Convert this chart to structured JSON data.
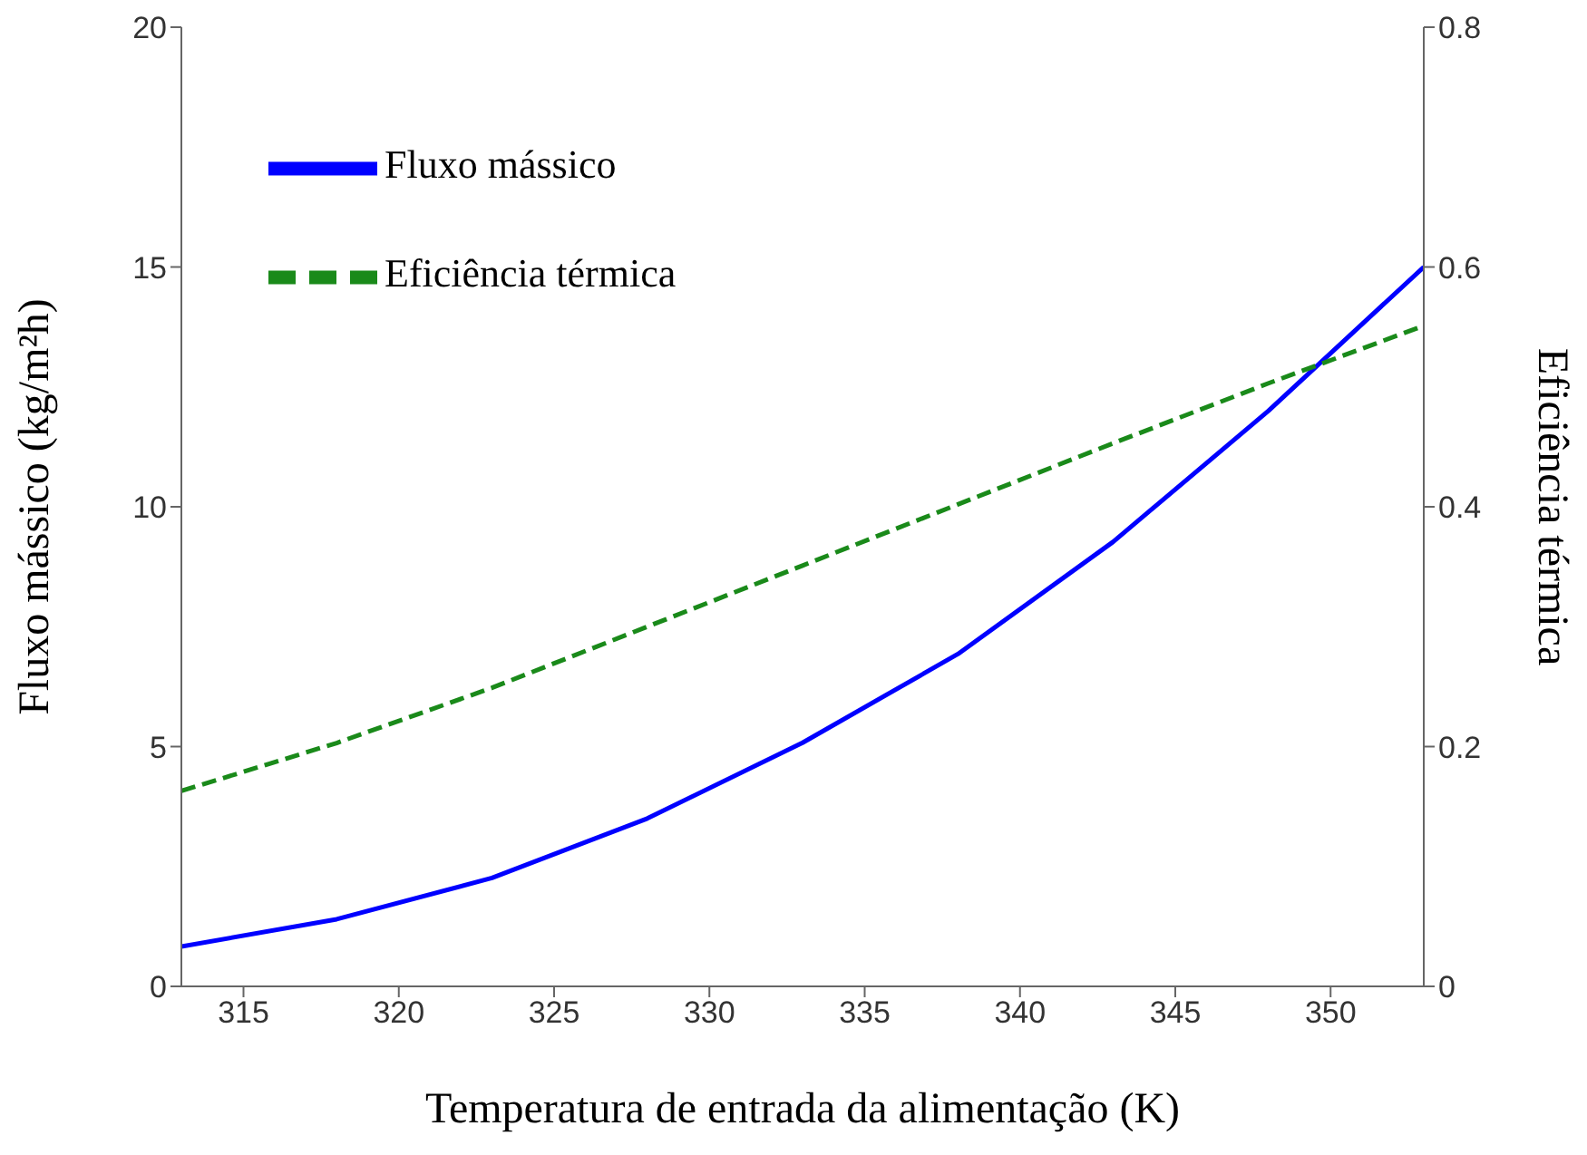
{
  "chart_data": {
    "type": "line",
    "xlabel": "Temperatura de entrada da alimentação (K)",
    "ylabel": "Fluxo mássico (kg/m²h)",
    "y2label": "Eficiência térmica",
    "x": [
      313,
      318,
      323,
      328,
      333,
      338,
      343,
      348,
      353
    ],
    "xlim": [
      313,
      353
    ],
    "xticks": [
      315,
      320,
      325,
      330,
      335,
      340,
      345,
      350
    ],
    "ylim": [
      0,
      20
    ],
    "yticks": [
      0,
      5,
      10,
      15,
      20
    ],
    "y2lim": [
      0,
      0.8
    ],
    "y2ticks": [
      0,
      0.2,
      0.4,
      0.6,
      0.8
    ],
    "series": [
      {
        "name": "Fluxo mássico",
        "color": "#0000ff",
        "line_style": "solid",
        "values": [
          0.83,
          1.4,
          2.26,
          3.5,
          5.08,
          6.93,
          9.27,
          12.0,
          15.0
        ]
      },
      {
        "name": "Eficiência térmica",
        "color": "#1a8a1a",
        "line_style": "dashed",
        "axis": "y2",
        "values": [
          0.163,
          0.203,
          0.249,
          0.3,
          0.351,
          0.402,
          0.453,
          0.503,
          0.551
        ]
      }
    ],
    "legend": "top left",
    "grid": false,
    "marker": "none"
  }
}
